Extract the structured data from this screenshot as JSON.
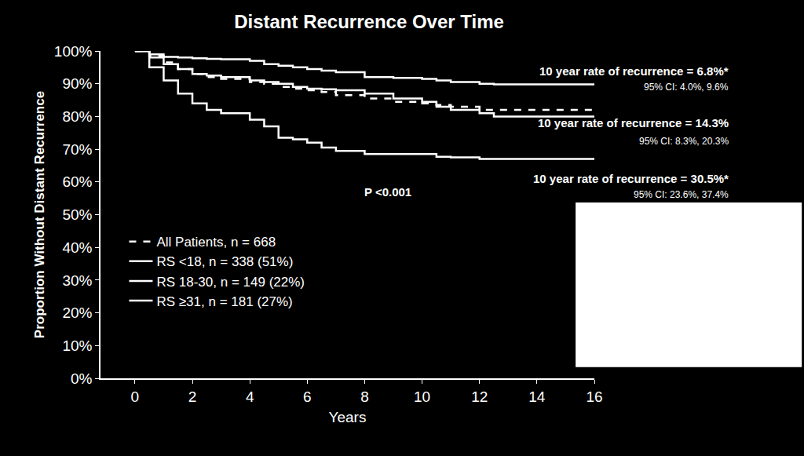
{
  "chart_data": {
    "type": "line",
    "title": "Distant Recurrence Over Time",
    "x_label": "Years",
    "y_label": "Proportion Without Distant Recurrence",
    "x": [
      0,
      0.5,
      1,
      1.5,
      2,
      2.5,
      3,
      4,
      4.5,
      5,
      5.5,
      6,
      6.5,
      7,
      8,
      9,
      10,
      10.5,
      11,
      12,
      12.5,
      16
    ],
    "series": [
      {
        "name": "All Patients, n = 668",
        "color": "#ffffff",
        "line_style": "dash",
        "values": [
          100,
          98.5,
          96.5,
          94.5,
          93,
          92,
          91.5,
          90.5,
          90,
          89,
          88.5,
          88,
          87.5,
          86.5,
          85.5,
          84.5,
          84,
          83.5,
          83,
          82,
          82,
          82
        ]
      },
      {
        "name": "RS <18, n = 338 (51%)",
        "color": "#ffffff",
        "line_style": "solid",
        "values": [
          100,
          99,
          98.2,
          98,
          97.8,
          97.6,
          97.5,
          97,
          96,
          95.5,
          95,
          94.5,
          94,
          93.5,
          92,
          91.8,
          91.5,
          91,
          90.5,
          90,
          89.8,
          89.8
        ]
      },
      {
        "name": "RS 18-30, n = 149 (22%)",
        "color": "#ffffff",
        "line_style": "solid",
        "values": [
          100,
          98,
          96,
          94.5,
          93,
          92.5,
          92,
          91,
          90.5,
          90,
          89,
          88.5,
          88.3,
          88,
          87,
          85.5,
          84.5,
          83,
          82,
          81,
          80,
          80
        ]
      },
      {
        "name": "RS ≥31, n = 181 (27%)",
        "color": "#ffffff",
        "line_style": "solid",
        "values": [
          100,
          95,
          91,
          87,
          84,
          82,
          81,
          79,
          77,
          73.5,
          73,
          72,
          70.5,
          69.5,
          68.5,
          68.5,
          68.5,
          67.7,
          67.5,
          67,
          67,
          67
        ]
      }
    ],
    "xlim": [
      -1.2,
      16
    ],
    "xticks": [
      0,
      2,
      4,
      6,
      8,
      10,
      12,
      14,
      16
    ],
    "ylim": [
      0,
      100
    ],
    "yticks": [
      {
        "value": 0,
        "label": "0%"
      },
      {
        "value": 10,
        "label": "10%"
      },
      {
        "value": 20,
        "label": "20%"
      },
      {
        "value": 30,
        "label": "30%"
      },
      {
        "value": 40,
        "label": "40%"
      },
      {
        "value": 50,
        "label": "50%"
      },
      {
        "value": 60,
        "label": "60%"
      },
      {
        "value": 70,
        "label": "70%"
      },
      {
        "value": 80,
        "label": "80%"
      },
      {
        "value": 90,
        "label": "90%"
      },
      {
        "value": 100,
        "label": "100%"
      }
    ],
    "grid": false,
    "legend": "lower left",
    "annotations": [
      {
        "text": "10 year rate of recurrence = 6.8%*",
        "ci": "95% CI: 4.0%, 9.6%"
      },
      {
        "text": "10 year rate of recurrence = 14.3%",
        "ci": "95% CI: 8.3%, 20.3%"
      },
      {
        "text": "10 year rate of recurrence = 30.5%*",
        "ci": "95% CI: 23.6%, 37.4%"
      },
      {
        "text": "P <0.001"
      }
    ]
  }
}
